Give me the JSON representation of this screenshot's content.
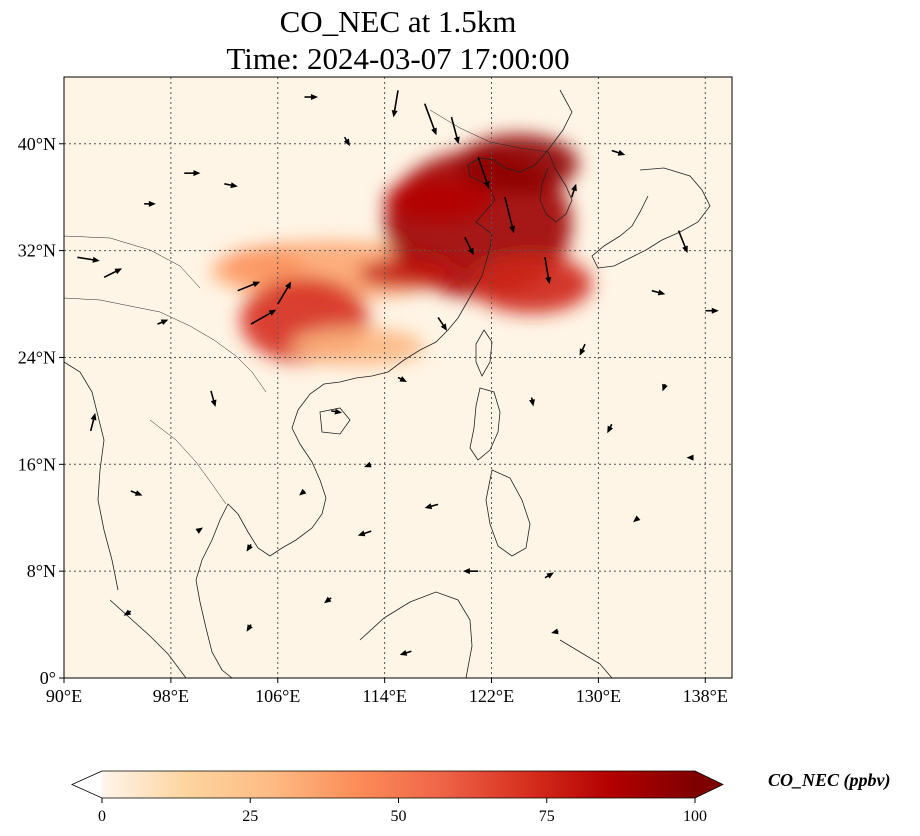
{
  "title_line_1": "CO_NEC at 1.5km",
  "title_line_2": "Time: 2024-03-07 17:00:00",
  "map": {
    "lon_range": [
      90,
      140
    ],
    "lat_range": [
      0,
      45
    ],
    "lon_ticks": [
      {
        "value": 90,
        "label": "90°E"
      },
      {
        "value": 98,
        "label": "98°E"
      },
      {
        "value": 106,
        "label": "106°E"
      },
      {
        "value": 114,
        "label": "114°E"
      },
      {
        "value": 122,
        "label": "122°E"
      },
      {
        "value": 130,
        "label": "130°E"
      },
      {
        "value": 138,
        "label": "138°E"
      }
    ],
    "lat_ticks": [
      {
        "value": 0,
        "label": "0°"
      },
      {
        "value": 8,
        "label": "8°N"
      },
      {
        "value": 16,
        "label": "16°N"
      },
      {
        "value": 24,
        "label": "24°N"
      },
      {
        "value": 32,
        "label": "32°N"
      },
      {
        "value": 40,
        "label": "40°N"
      }
    ],
    "gridlines": true,
    "background_color": "#fff5e6",
    "plumes": [
      {
        "lon": 110,
        "lat": 30.5,
        "rlon": 9,
        "rlat": 2.2,
        "value": 35
      },
      {
        "lon": 108,
        "lat": 26.8,
        "rlon": 4.8,
        "rlat": 3.2,
        "value": 72
      },
      {
        "lon": 112,
        "lat": 24.8,
        "rlon": 5,
        "rlat": 1.4,
        "value": 30
      },
      {
        "lon": 121,
        "lat": 34,
        "rlon": 7,
        "rlat": 5.5,
        "value": 92
      },
      {
        "lon": 124,
        "lat": 38.5,
        "rlon": 4.5,
        "rlat": 2.2,
        "value": 96
      },
      {
        "lon": 118,
        "lat": 35.8,
        "rlon": 4,
        "rlat": 1.6,
        "value": 85
      },
      {
        "lon": 125,
        "lat": 29.5,
        "rlon": 4.5,
        "rlat": 2.2,
        "value": 75
      },
      {
        "lon": 116,
        "lat": 30.3,
        "rlon": 4,
        "rlat": 1.1,
        "value": 80
      },
      {
        "lon": 105,
        "lat": 31,
        "rlon": 3,
        "rlat": 1.2,
        "value": 40
      }
    ],
    "winds": [
      {
        "lon": 91,
        "lat": 31.5,
        "u": 2.5,
        "v": -0.4
      },
      {
        "lon": 93,
        "lat": 30,
        "u": 2,
        "v": 1
      },
      {
        "lon": 96,
        "lat": 35.5,
        "u": 1.3,
        "v": 0
      },
      {
        "lon": 99,
        "lat": 37.8,
        "u": 1.8,
        "v": 0
      },
      {
        "lon": 102,
        "lat": 37,
        "u": 1.5,
        "v": -0.3
      },
      {
        "lon": 103,
        "lat": 29,
        "u": 2.5,
        "v": 1
      },
      {
        "lon": 104,
        "lat": 26.5,
        "u": 2.8,
        "v": 1.6
      },
      {
        "lon": 106,
        "lat": 28,
        "u": 1.5,
        "v": 2.5
      },
      {
        "lon": 111,
        "lat": 40.5,
        "u": 0.6,
        "v": -1
      },
      {
        "lon": 115,
        "lat": 44,
        "u": -0.5,
        "v": -3
      },
      {
        "lon": 117,
        "lat": 43,
        "u": 1.3,
        "v": -3.5
      },
      {
        "lon": 119,
        "lat": 42,
        "u": 0.8,
        "v": -3
      },
      {
        "lon": 121,
        "lat": 39,
        "u": 1.2,
        "v": -3.5
      },
      {
        "lon": 123,
        "lat": 36,
        "u": 1,
        "v": -4
      },
      {
        "lon": 120,
        "lat": 33,
        "u": 1,
        "v": -2
      },
      {
        "lon": 126,
        "lat": 31.5,
        "u": 0.5,
        "v": -3
      },
      {
        "lon": 128,
        "lat": 36,
        "u": 0.5,
        "v": 1.5
      },
      {
        "lon": 131,
        "lat": 39.5,
        "u": 1.5,
        "v": -0.5
      },
      {
        "lon": 136,
        "lat": 33.5,
        "u": 1,
        "v": -2.5
      },
      {
        "lon": 134,
        "lat": 29,
        "u": 1.5,
        "v": -0.4
      },
      {
        "lon": 138,
        "lat": 27.5,
        "u": 1.5,
        "v": 0
      },
      {
        "lon": 118,
        "lat": 27,
        "u": 1,
        "v": -1.5
      },
      {
        "lon": 115,
        "lat": 22.5,
        "u": 1,
        "v": -0.5
      },
      {
        "lon": 110,
        "lat": 20,
        "u": 1.2,
        "v": -0.2
      },
      {
        "lon": 125,
        "lat": 21,
        "u": 0.2,
        "v": -1
      },
      {
        "lon": 131,
        "lat": 19,
        "u": -0.5,
        "v": -1
      },
      {
        "lon": 92,
        "lat": 18.5,
        "u": 0.5,
        "v": 2
      },
      {
        "lon": 95,
        "lat": 14,
        "u": 1.3,
        "v": -0.5
      },
      {
        "lon": 100,
        "lat": 11,
        "u": 0.6,
        "v": 0.4
      },
      {
        "lon": 104,
        "lat": 10,
        "u": -0.5,
        "v": -0.8
      },
      {
        "lon": 108,
        "lat": 14,
        "u": -0.6,
        "v": -0.5
      },
      {
        "lon": 113,
        "lat": 11,
        "u": -1.5,
        "v": -0.5
      },
      {
        "lon": 118,
        "lat": 13,
        "u": -1.5,
        "v": -0.4
      },
      {
        "lon": 121,
        "lat": 8,
        "u": -1.7,
        "v": 0
      },
      {
        "lon": 126,
        "lat": 7.5,
        "u": 1,
        "v": 0.6
      },
      {
        "lon": 110,
        "lat": 6,
        "u": -0.8,
        "v": -0.6
      },
      {
        "lon": 104,
        "lat": 4,
        "u": -0.5,
        "v": -0.8
      },
      {
        "lon": 95,
        "lat": 5,
        "u": -0.8,
        "v": -0.5
      },
      {
        "lon": 116,
        "lat": 2,
        "u": -1.3,
        "v": -0.4
      },
      {
        "lon": 127,
        "lat": 3.5,
        "u": -0.8,
        "v": -0.2
      },
      {
        "lon": 133,
        "lat": 12,
        "u": -0.6,
        "v": -0.5
      },
      {
        "lon": 137,
        "lat": 16.5,
        "u": -0.6,
        "v": 0
      },
      {
        "lon": 135,
        "lat": 22,
        "u": -0.3,
        "v": -0.8
      },
      {
        "lon": 129,
        "lat": 25,
        "u": -0.6,
        "v": -1.3
      },
      {
        "lon": 113,
        "lat": 16,
        "u": -0.8,
        "v": -0.3
      },
      {
        "lon": 101,
        "lat": 21.5,
        "u": 0.5,
        "v": -1.8
      },
      {
        "lon": 97,
        "lat": 26.5,
        "u": 1.2,
        "v": 0.5
      },
      {
        "lon": 108,
        "lat": 43.5,
        "u": 1.5,
        "v": 0
      }
    ]
  },
  "colorbar": {
    "label": "CO_NEC (ppbv)",
    "min": 0,
    "max": 100,
    "extend": "both",
    "ticks": [
      {
        "value": 0,
        "label": "0"
      },
      {
        "value": 25,
        "label": "25"
      },
      {
        "value": 50,
        "label": "50"
      },
      {
        "value": 75,
        "label": "75"
      },
      {
        "value": 100,
        "label": "100"
      }
    ],
    "colors": [
      "#fff5eb",
      "#fdd49e",
      "#fdbb84",
      "#fc8d59",
      "#ef6548",
      "#d7301f",
      "#b30000",
      "#7f0000"
    ],
    "over_color": "#7f0000",
    "under_color": "#ffffff"
  }
}
